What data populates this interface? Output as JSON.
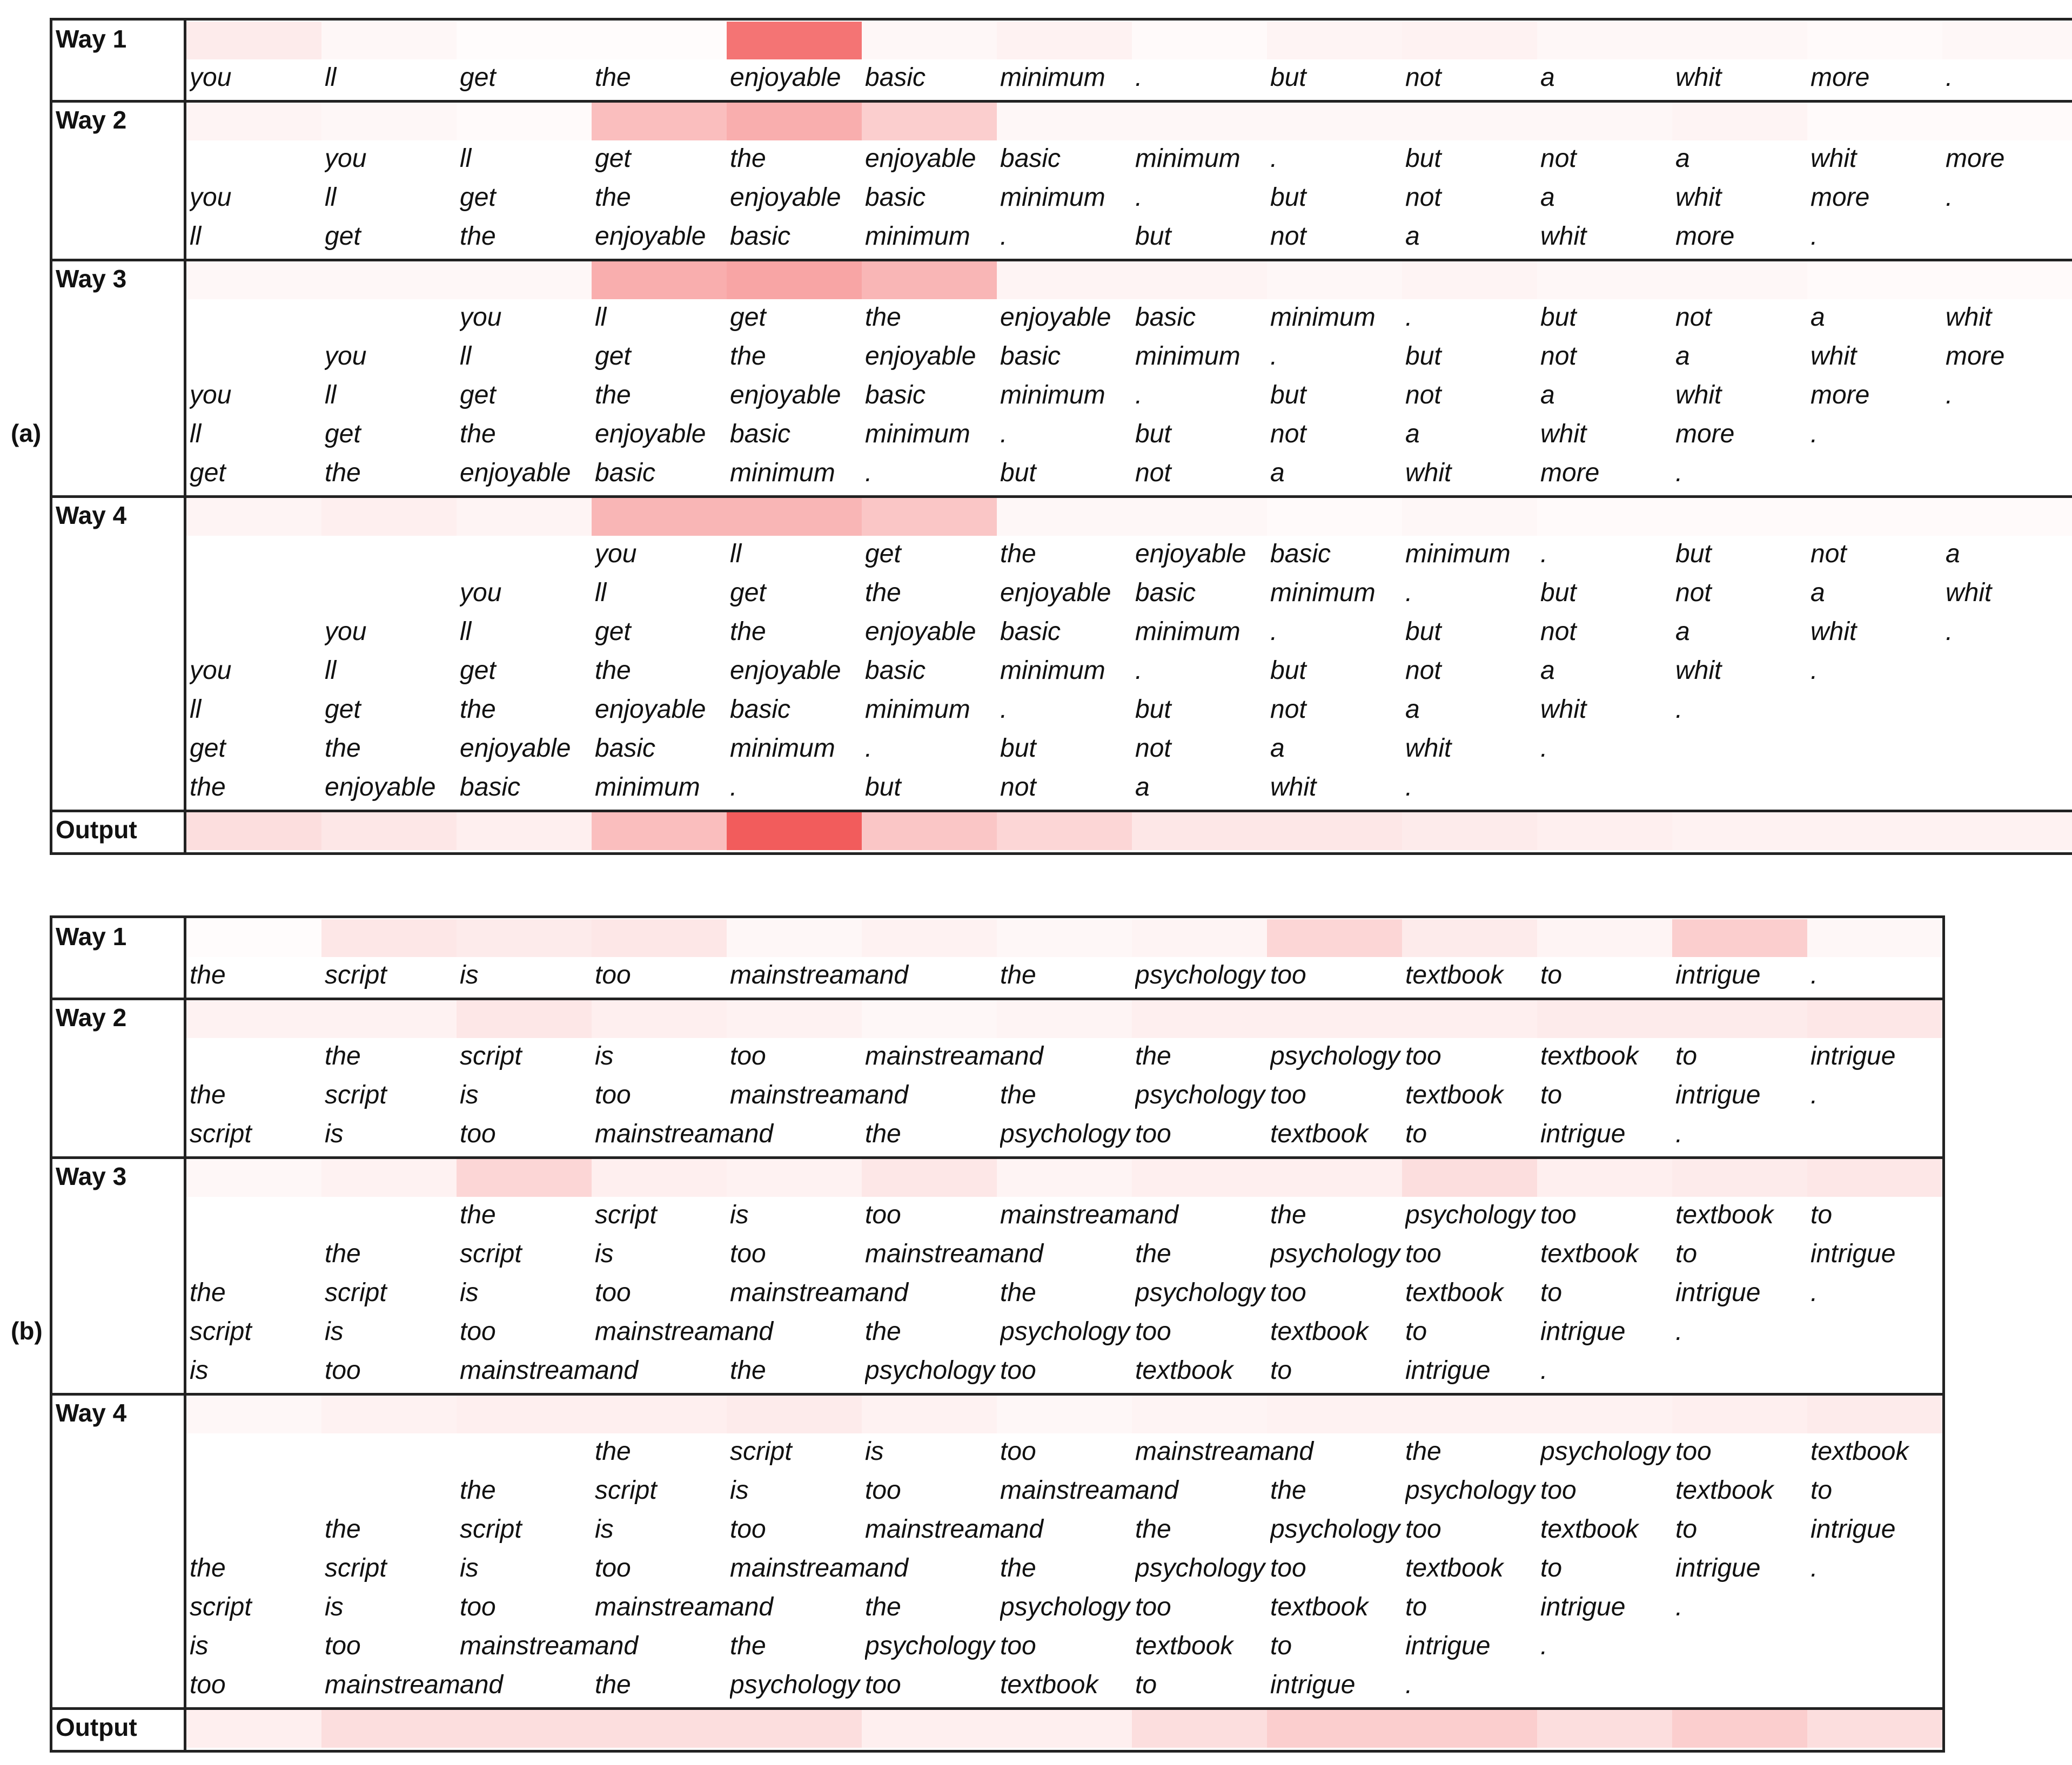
{
  "panels": [
    {
      "label": "(a)",
      "ways": [
        {
          "name": "Way 1",
          "heat": [
            0.12,
            0.05,
            0.02,
            0.02,
            0.85,
            0.05,
            0.08,
            0.03,
            0.07,
            0.08,
            0.05,
            0.05,
            0.03,
            0.05
          ],
          "rows": [
            [
              "you",
              "ll",
              "get",
              "the",
              "enjoyable",
              "basic",
              "minimum",
              ".",
              "but",
              "not",
              "a",
              "whit",
              "more",
              "."
            ]
          ]
        },
        {
          "name": "Way 2",
          "heat": [
            0.07,
            0.05,
            0.03,
            0.4,
            0.5,
            0.3,
            0.05,
            0.05,
            0.05,
            0.05,
            0.05,
            0.07,
            0.03,
            0.03
          ],
          "rows": [
            [
              "",
              "you",
              "ll",
              "get",
              "the",
              "enjoyable",
              "basic",
              "minimum",
              ".",
              "but",
              "not",
              "a",
              "whit",
              "more"
            ],
            [
              "you",
              "ll",
              "get",
              "the",
              "enjoyable",
              "basic",
              "minimum",
              ".",
              "but",
              "not",
              "a",
              "whit",
              "more",
              "."
            ],
            [
              "ll",
              "get",
              "the",
              "enjoyable",
              "basic",
              "minimum",
              ".",
              "but",
              "not",
              "a",
              "whit",
              "more",
              ".",
              ""
            ]
          ]
        },
        {
          "name": "Way 3",
          "heat": [
            0.05,
            0.05,
            0.05,
            0.5,
            0.55,
            0.45,
            0.07,
            0.07,
            0.05,
            0.07,
            0.05,
            0.05,
            0.03,
            0.03
          ],
          "rows": [
            [
              "",
              "",
              "you",
              "ll",
              "get",
              "the",
              "enjoyable",
              "basic",
              "minimum",
              ".",
              "but",
              "not",
              "a",
              "whit"
            ],
            [
              "",
              "you",
              "ll",
              "get",
              "the",
              "enjoyable",
              "basic",
              "minimum",
              ".",
              "but",
              "not",
              "a",
              "whit",
              "more"
            ],
            [
              "you",
              "ll",
              "get",
              "the",
              "enjoyable",
              "basic",
              "minimum",
              ".",
              "but",
              "not",
              "a",
              "whit",
              "more",
              "."
            ],
            [
              "ll",
              "get",
              "the",
              "enjoyable",
              "basic",
              "minimum",
              ".",
              "but",
              "not",
              "a",
              "whit",
              "more",
              ".",
              ""
            ],
            [
              "get",
              "the",
              "enjoyable",
              "basic",
              "minimum",
              ".",
              "but",
              "not",
              "a",
              "whit",
              "more",
              ".",
              "",
              ""
            ]
          ]
        },
        {
          "name": "Way 4",
          "heat": [
            0.07,
            0.1,
            0.07,
            0.45,
            0.45,
            0.35,
            0.05,
            0.05,
            0.03,
            0.05,
            0.03,
            0.03,
            0.03,
            0.03
          ],
          "rows": [
            [
              "",
              "",
              "",
              "you",
              "ll",
              "get",
              "the",
              "enjoyable",
              "basic",
              "minimum",
              ".",
              "but",
              "not",
              "a"
            ],
            [
              "",
              "",
              "you",
              "ll",
              "get",
              "the",
              "enjoyable",
              "basic",
              "minimum",
              ".",
              "but",
              "not",
              "a",
              "whit"
            ],
            [
              "",
              "you",
              "ll",
              "get",
              "the",
              "enjoyable",
              "basic",
              "minimum",
              ".",
              "but",
              "not",
              "a",
              "whit",
              "."
            ],
            [
              "you",
              "ll",
              "get",
              "the",
              "enjoyable",
              "basic",
              "minimum",
              ".",
              "but",
              "not",
              "a",
              "whit",
              ".",
              ""
            ],
            [
              "ll",
              "get",
              "the",
              "enjoyable",
              "basic",
              "minimum",
              ".",
              "but",
              "not",
              "a",
              "whit",
              ".",
              "",
              ""
            ],
            [
              "get",
              "the",
              "enjoyable",
              "basic",
              "minimum",
              ".",
              "but",
              "not",
              "a",
              "whit",
              ".",
              "",
              "",
              ""
            ],
            [
              "the",
              "enjoyable",
              "basic",
              "minimum",
              ".",
              "but",
              "not",
              "a",
              "whit",
              ".",
              "",
              "",
              "",
              ""
            ]
          ]
        }
      ],
      "output": {
        "name": "Output",
        "heat": [
          0.2,
          0.15,
          0.1,
          0.4,
          1.0,
          0.35,
          0.25,
          0.15,
          0.15,
          0.12,
          0.1,
          0.08,
          0.08,
          0.08
        ]
      }
    },
    {
      "label": "(b)",
      "ways": [
        {
          "name": "Way 1",
          "heat": [
            0.02,
            0.15,
            0.12,
            0.15,
            0.05,
            0.08,
            0.05,
            0.07,
            0.25,
            0.12,
            0.07,
            0.3,
            0.05
          ],
          "rows": [
            [
              "the",
              "script",
              "is",
              "too",
              "mainstream",
              "and",
              "the",
              "psychology",
              "too",
              "textbook",
              "to",
              "intrigue",
              "."
            ]
          ]
        },
        {
          "name": "Way 2",
          "heat": [
            0.08,
            0.08,
            0.15,
            0.1,
            0.08,
            0.05,
            0.07,
            0.1,
            0.1,
            0.1,
            0.12,
            0.12,
            0.15
          ],
          "rows": [
            [
              "",
              "the",
              "script",
              "is",
              "too",
              "mainstream",
              "and",
              "the",
              "psychology",
              "too",
              "textbook",
              "to",
              "intrigue"
            ],
            [
              "the",
              "script",
              "is",
              "too",
              "mainstream",
              "and",
              "the",
              "psychology",
              "too",
              "textbook",
              "to",
              "intrigue",
              "."
            ],
            [
              "script",
              "is",
              "too",
              "mainstream",
              "and",
              "the",
              "psychology",
              "too",
              "textbook",
              "to",
              "intrigue",
              ".",
              ""
            ]
          ]
        },
        {
          "name": "Way 3",
          "heat": [
            0.05,
            0.08,
            0.25,
            0.1,
            0.08,
            0.15,
            0.07,
            0.1,
            0.1,
            0.2,
            0.1,
            0.12,
            0.15
          ],
          "rows": [
            [
              "",
              "",
              "the",
              "script",
              "is",
              "too",
              "mainstream",
              "and",
              "the",
              "psychology",
              "too",
              "textbook",
              "to"
            ],
            [
              "",
              "the",
              "script",
              "is",
              "too",
              "mainstream",
              "and",
              "the",
              "psychology",
              "too",
              "textbook",
              "to",
              "intrigue"
            ],
            [
              "the",
              "script",
              "is",
              "too",
              "mainstream",
              "and",
              "the",
              "psychology",
              "too",
              "textbook",
              "to",
              "intrigue",
              "."
            ],
            [
              "script",
              "is",
              "too",
              "mainstream",
              "and",
              "the",
              "psychology",
              "too",
              "textbook",
              "to",
              "intrigue",
              ".",
              ""
            ],
            [
              "is",
              "too",
              "mainstream",
              "and",
              "the",
              "psychology",
              "too",
              "textbook",
              "to",
              "intrigue",
              ".",
              "",
              ""
            ]
          ]
        },
        {
          "name": "Way 4",
          "heat": [
            0.05,
            0.08,
            0.1,
            0.1,
            0.12,
            0.08,
            0.05,
            0.07,
            0.08,
            0.08,
            0.08,
            0.1,
            0.12
          ],
          "rows": [
            [
              "",
              "",
              "",
              "the",
              "script",
              "is",
              "too",
              "mainstream",
              "and",
              "the",
              "psychology",
              "too",
              "textbook"
            ],
            [
              "",
              "",
              "the",
              "script",
              "is",
              "too",
              "mainstream",
              "and",
              "the",
              "psychology",
              "too",
              "textbook",
              "to"
            ],
            [
              "",
              "the",
              "script",
              "is",
              "too",
              "mainstream",
              "and",
              "the",
              "psychology",
              "too",
              "textbook",
              "to",
              "intrigue"
            ],
            [
              "the",
              "script",
              "is",
              "too",
              "mainstream",
              "and",
              "the",
              "psychology",
              "too",
              "textbook",
              "to",
              "intrigue",
              "."
            ],
            [
              "script",
              "is",
              "too",
              "mainstream",
              "and",
              "the",
              "psychology",
              "too",
              "textbook",
              "to",
              "intrigue",
              ".",
              ""
            ],
            [
              "is",
              "too",
              "mainstream",
              "and",
              "the",
              "psychology",
              "too",
              "textbook",
              "to",
              "intrigue",
              ".",
              "",
              ""
            ],
            [
              "too",
              "mainstream",
              "and",
              "the",
              "psychology",
              "too",
              "textbook",
              "to",
              "intrigue",
              ".",
              "",
              "",
              ""
            ]
          ]
        }
      ],
      "output": {
        "name": "Output",
        "heat": [
          0.1,
          0.2,
          0.2,
          0.2,
          0.2,
          0.1,
          0.1,
          0.2,
          0.3,
          0.3,
          0.2,
          0.3,
          0.2
        ]
      }
    }
  ],
  "colors": {
    "heat_max": "#f25c5c",
    "border": "#222222"
  }
}
